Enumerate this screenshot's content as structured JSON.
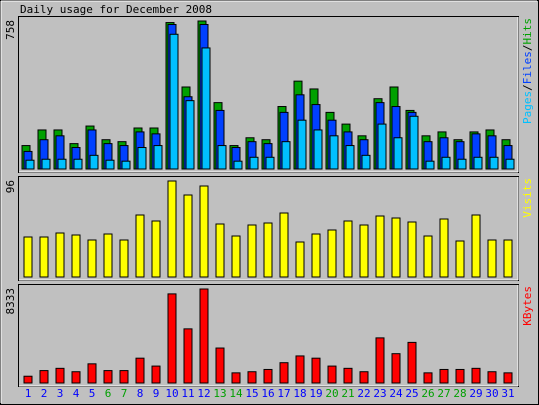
{
  "title": "Daily usage for December 2008",
  "categories": [
    "1",
    "2",
    "3",
    "4",
    "5",
    "6",
    "7",
    "8",
    "9",
    "10",
    "11",
    "12",
    "13",
    "14",
    "15",
    "16",
    "17",
    "18",
    "19",
    "20",
    "21",
    "22",
    "23",
    "24",
    "25",
    "26",
    "27",
    "28",
    "29",
    "30",
    "31"
  ],
  "category_colors": [
    "#0000ff",
    "#0000ff",
    "#0000ff",
    "#0000ff",
    "#0000ff",
    "#00a000",
    "#00a000",
    "#0000ff",
    "#0000ff",
    "#0000ff",
    "#0000ff",
    "#0000ff",
    "#00a000",
    "#00a000",
    "#0000ff",
    "#0000ff",
    "#0000ff",
    "#0000ff",
    "#0000ff",
    "#00a000",
    "#00a000",
    "#0000ff",
    "#0000ff",
    "#0000ff",
    "#0000ff",
    "#00a000",
    "#00a000",
    "#00a000",
    "#0000ff",
    "#0000ff",
    "#0000ff"
  ],
  "chart_data": [
    {
      "type": "bar",
      "ylim": [
        0,
        758
      ],
      "yticks": [
        758
      ],
      "legend_separator": "/",
      "series": [
        {
          "name": "Pages",
          "color": "#00c0ff",
          "values": [
            45,
            50,
            50,
            50,
            70,
            45,
            40,
            110,
            120,
            690,
            350,
            620,
            120,
            40,
            60,
            60,
            140,
            250,
            200,
            170,
            120,
            70,
            230,
            160,
            270,
            40,
            60,
            50,
            60,
            60,
            50
          ]
        },
        {
          "name": "Files",
          "color": "#0040ff",
          "values": [
            90,
            150,
            170,
            110,
            200,
            130,
            120,
            190,
            180,
            740,
            370,
            740,
            300,
            110,
            140,
            130,
            290,
            380,
            330,
            250,
            190,
            150,
            340,
            320,
            290,
            140,
            160,
            140,
            180,
            170,
            120
          ]
        },
        {
          "name": "Hits",
          "color": "#00a000",
          "values": [
            120,
            200,
            200,
            130,
            220,
            150,
            140,
            210,
            210,
            750,
            420,
            758,
            340,
            120,
            160,
            150,
            320,
            450,
            410,
            290,
            230,
            170,
            360,
            420,
            300,
            170,
            190,
            150,
            190,
            200,
            150
          ]
        }
      ]
    },
    {
      "type": "bar",
      "ylim": [
        0,
        96
      ],
      "yticks": [
        96
      ],
      "series": [
        {
          "name": "Visits",
          "color": "#ffff00",
          "values": [
            40,
            40,
            44,
            42,
            37,
            43,
            37,
            62,
            56,
            96,
            82,
            91,
            53,
            41,
            52,
            54,
            64,
            35,
            43,
            47,
            56,
            52,
            61,
            59,
            55,
            41,
            58,
            36,
            62,
            37,
            37
          ]
        }
      ]
    },
    {
      "type": "bar",
      "ylim": [
        0,
        8333
      ],
      "yticks": [
        8333
      ],
      "series": [
        {
          "name": "KBytes",
          "color": "#ff0000",
          "values": [
            600,
            1100,
            1300,
            1000,
            1700,
            1100,
            1100,
            2200,
            1500,
            7900,
            4800,
            8333,
            3100,
            900,
            1000,
            1200,
            1800,
            2400,
            2200,
            1500,
            1300,
            1000,
            4000,
            2600,
            3600,
            900,
            1200,
            1200,
            1300,
            1000,
            900
          ]
        }
      ]
    }
  ]
}
